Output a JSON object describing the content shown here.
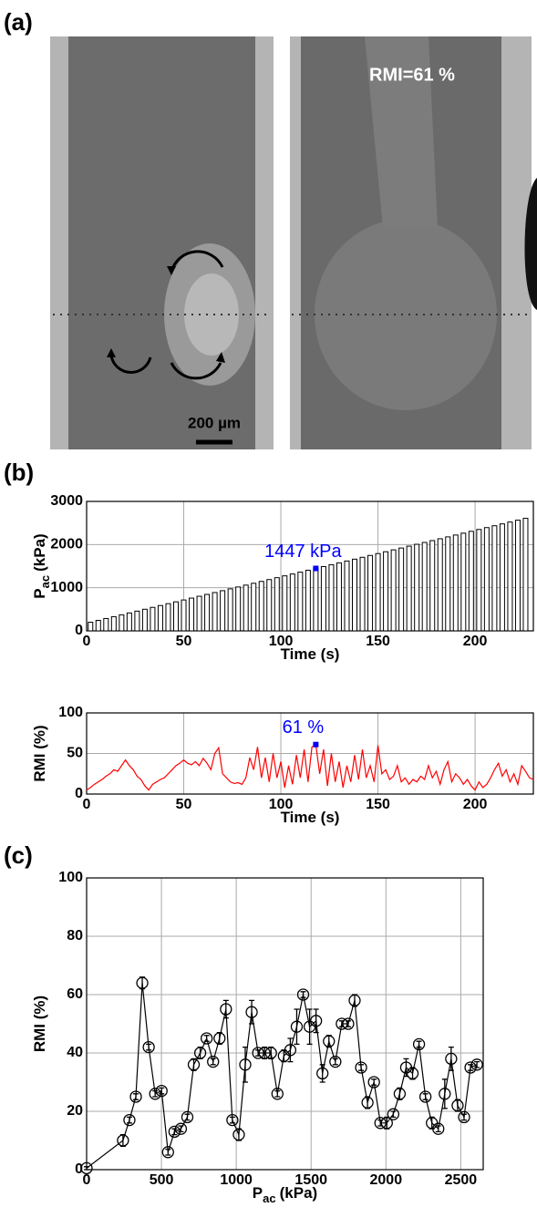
{
  "panel_labels": [
    "(a)",
    "(b)",
    "(c)"
  ],
  "panel_a": {
    "annotation": "RMI=61 %",
    "scale_bar": "200 µm"
  },
  "chart_data": [
    {
      "type": "bar",
      "xlabel": "Time (s)",
      "ylabel": "P",
      "ylabel_sub": "ac",
      "ylabel_unit": "(kPa)",
      "x": [
        2,
        6,
        10,
        14,
        18,
        22,
        26,
        30,
        34,
        38,
        42,
        46,
        50,
        54,
        58,
        62,
        66,
        70,
        74,
        78,
        82,
        86,
        90,
        94,
        98,
        102,
        106,
        110,
        114,
        118,
        122,
        126,
        130,
        134,
        138,
        142,
        146,
        150,
        154,
        158,
        162,
        166,
        170,
        174,
        178,
        182,
        186,
        190,
        194,
        198,
        202,
        206,
        210,
        214,
        218,
        222,
        226
      ],
      "values": [
        200,
        243,
        286,
        329,
        372,
        415,
        458,
        501,
        544,
        587,
        630,
        673,
        716,
        759,
        802,
        845,
        888,
        931,
        974,
        1017,
        1060,
        1103,
        1146,
        1189,
        1232,
        1275,
        1318,
        1361,
        1404,
        1447,
        1490,
        1533,
        1576,
        1619,
        1662,
        1705,
        1748,
        1791,
        1834,
        1877,
        1920,
        1963,
        2006,
        2049,
        2092,
        2135,
        2178,
        2221,
        2264,
        2307,
        2350,
        2393,
        2436,
        2479,
        2522,
        2565,
        2608
      ],
      "color": "#000000",
      "xlim": [
        0,
        230
      ],
      "ylim": [
        0,
        3000
      ],
      "xticks": [
        0,
        50,
        100,
        150,
        200
      ],
      "yticks": [
        0,
        1000,
        2000,
        3000
      ],
      "grid": true,
      "highlight": {
        "x": 118,
        "value": 1447,
        "label": "1447 kPa",
        "color": "#0000ff"
      }
    },
    {
      "type": "line",
      "xlabel": "Time (s)",
      "ylabel": "RMI (%)",
      "x": [
        0,
        2,
        4,
        6,
        8,
        10,
        12,
        14,
        16,
        18,
        20,
        22,
        24,
        26,
        28,
        30,
        32,
        34,
        36,
        38,
        40,
        42,
        44,
        46,
        48,
        50,
        52,
        54,
        56,
        58,
        60,
        62,
        64,
        66,
        68,
        70,
        72,
        74,
        76,
        78,
        80,
        82,
        84,
        86,
        88,
        90,
        92,
        94,
        96,
        98,
        100,
        102,
        104,
        106,
        108,
        110,
        112,
        114,
        116,
        118,
        120,
        122,
        124,
        126,
        128,
        130,
        132,
        134,
        136,
        138,
        140,
        142,
        144,
        146,
        148,
        150,
        152,
        154,
        156,
        158,
        160,
        162,
        164,
        166,
        168,
        170,
        172,
        174,
        176,
        178,
        180,
        182,
        184,
        186,
        188,
        190,
        192,
        194,
        196,
        198,
        200,
        202,
        204,
        206,
        208,
        210,
        212,
        214,
        216,
        218,
        220,
        222,
        224,
        226,
        228,
        230
      ],
      "values": [
        5,
        8,
        12,
        15,
        18,
        22,
        25,
        30,
        28,
        35,
        42,
        35,
        30,
        22,
        18,
        10,
        5,
        12,
        15,
        18,
        20,
        25,
        30,
        35,
        38,
        42,
        38,
        36,
        40,
        35,
        44,
        38,
        30,
        50,
        57,
        25,
        20,
        15,
        13,
        14,
        12,
        20,
        45,
        30,
        58,
        20,
        45,
        15,
        50,
        20,
        40,
        8,
        35,
        12,
        48,
        20,
        55,
        15,
        58,
        61,
        25,
        55,
        10,
        50,
        15,
        40,
        8,
        35,
        15,
        48,
        18,
        55,
        20,
        35,
        15,
        60,
        25,
        30,
        18,
        22,
        35,
        15,
        20,
        12,
        18,
        15,
        22,
        18,
        35,
        20,
        28,
        12,
        30,
        40,
        15,
        25,
        20,
        12,
        18,
        10,
        5,
        15,
        8,
        12,
        20,
        30,
        38,
        22,
        30,
        15,
        25,
        12,
        35,
        28,
        20,
        18
      ],
      "color": "#ff0000",
      "xlim": [
        0,
        230
      ],
      "ylim": [
        0,
        100
      ],
      "xticks": [
        0,
        50,
        100,
        150,
        200
      ],
      "yticks": [
        0,
        50,
        100
      ],
      "grid": true,
      "highlight": {
        "x": 118,
        "value": 61,
        "label": "61 %",
        "color": "#0000ff"
      }
    },
    {
      "type": "errorbar",
      "xlabel": "P",
      "xlabel_sub": "ac",
      "xlabel_unit": "(kPa)",
      "ylabel": "RMI (%)",
      "x": [
        0,
        243,
        286,
        329,
        372,
        415,
        458,
        501,
        544,
        587,
        630,
        673,
        716,
        759,
        802,
        845,
        888,
        931,
        974,
        1017,
        1060,
        1103,
        1146,
        1189,
        1232,
        1275,
        1318,
        1361,
        1404,
        1447,
        1490,
        1533,
        1576,
        1619,
        1662,
        1705,
        1748,
        1791,
        1834,
        1877,
        1920,
        1963,
        2006,
        2049,
        2092,
        2135,
        2178,
        2221,
        2264,
        2307,
        2350,
        2393,
        2436,
        2479,
        2522,
        2565,
        2608
      ],
      "values": [
        0.5,
        10,
        17,
        25,
        64,
        42,
        26,
        27,
        6,
        13,
        14,
        18,
        36,
        40,
        45,
        37,
        45,
        55,
        17,
        12,
        36,
        54,
        40,
        40,
        40,
        26,
        39,
        41,
        49,
        60,
        49,
        51,
        33,
        44,
        37,
        50,
        50,
        58,
        35,
        23,
        30,
        16,
        16,
        19,
        26,
        35,
        33,
        43,
        25,
        16,
        14,
        26,
        38,
        22,
        18,
        35,
        36
      ],
      "errors": [
        0.5,
        2,
        1,
        1,
        2,
        1,
        1,
        1,
        1,
        1,
        1,
        1,
        2,
        2,
        1,
        1,
        2,
        3,
        1,
        2,
        6,
        4,
        1,
        2,
        2,
        1,
        2,
        4,
        6,
        1,
        6,
        4,
        3,
        2,
        1,
        1,
        1,
        2,
        1,
        2,
        1,
        1,
        2,
        1,
        2,
        3,
        2,
        1,
        1,
        2,
        1,
        5,
        4,
        2,
        1,
        1,
        1
      ],
      "color": "#000000",
      "marker": "circle",
      "xlim": [
        0,
        2650
      ],
      "ylim": [
        0,
        100
      ],
      "xticks": [
        0,
        500,
        1000,
        1500,
        2000,
        2500
      ],
      "yticks": [
        0,
        20,
        40,
        60,
        80,
        100
      ],
      "grid": true
    }
  ]
}
